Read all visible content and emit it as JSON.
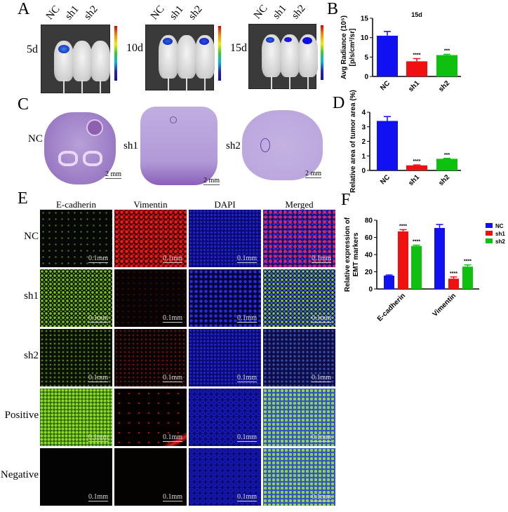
{
  "panels": {
    "A": "A",
    "B": "B",
    "C": "C",
    "D": "D",
    "E": "E",
    "F": "F"
  },
  "panelA": {
    "groups": [
      "NC",
      "sh1",
      "sh2"
    ],
    "timepoints": [
      "5d",
      "10d",
      "15d"
    ]
  },
  "panelC": {
    "groups": [
      "NC",
      "sh1",
      "sh2"
    ],
    "scale": "2 mm"
  },
  "panelE": {
    "columns": [
      "E-cadherin",
      "Vimentin",
      "DAPI",
      "Merged"
    ],
    "rows": [
      "NC",
      "sh1",
      "sh2",
      "Positive",
      "Negative"
    ],
    "scale": "0.1mm"
  },
  "colors": {
    "NC": "#1010f0",
    "sh1": "#f01010",
    "sh2": "#10c010"
  },
  "chart_data": [
    {
      "id": "B",
      "type": "bar",
      "title": "15d",
      "ylabel": "Avg Radiance (10^5) [p/s/cm^2/sr]",
      "ylabel_lines": [
        "Avg Radiance (10⁵)",
        "[p/s/cm²/sr]"
      ],
      "categories": [
        "NC",
        "sh1",
        "sh2"
      ],
      "values": [
        10.5,
        3.9,
        5.5
      ],
      "errors": [
        1.1,
        0.7,
        0.2
      ],
      "significance": [
        "",
        "****",
        "***"
      ],
      "ylim": [
        0,
        15
      ],
      "yticks": [
        0,
        5,
        10,
        15
      ]
    },
    {
      "id": "D",
      "type": "bar",
      "title": "",
      "ylabel_lines": [
        "Relative area of tumor area (%)"
      ],
      "categories": [
        "NC",
        "sh1",
        "sh2"
      ],
      "values": [
        3.4,
        0.35,
        0.8
      ],
      "errors": [
        0.3,
        0.03,
        0.03
      ],
      "significance": [
        "",
        "****",
        "***"
      ],
      "ylim": [
        0,
        4
      ],
      "yticks": [
        0,
        1,
        2,
        3,
        4
      ]
    },
    {
      "id": "F",
      "type": "bar",
      "ylabel_lines": [
        "Relative expression of",
        "EMT markers"
      ],
      "categories": [
        "E-cadherin",
        "Vimentin"
      ],
      "series": [
        {
          "name": "NC",
          "values": [
            15.5,
            71
          ],
          "errors": [
            0.8,
            4
          ],
          "significance": [
            "",
            ""
          ]
        },
        {
          "name": "sh1",
          "values": [
            67,
            12
          ],
          "errors": [
            2,
            2
          ],
          "significance": [
            "****",
            "****"
          ]
        },
        {
          "name": "sh2",
          "values": [
            50,
            26
          ],
          "errors": [
            1,
            2
          ],
          "significance": [
            "****",
            "****"
          ]
        }
      ],
      "ylim": [
        0,
        80
      ],
      "yticks": [
        0,
        20,
        40,
        60,
        80
      ],
      "legend": "right"
    }
  ]
}
